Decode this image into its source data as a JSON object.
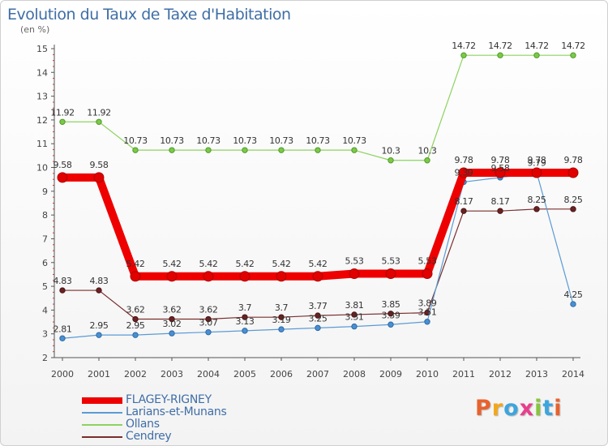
{
  "header": {
    "title": "Evolution du Taux de Taxe d'Habitation",
    "subtitle": "(en %)"
  },
  "brand": {
    "letters": [
      "P",
      "r",
      "o",
      "x",
      "i",
      "t",
      "i"
    ],
    "colors": [
      "#e8622c",
      "#f2a71b",
      "#3da5dd",
      "#e83e8c",
      "#88c540",
      "#3da5dd",
      "#e8622c"
    ]
  },
  "chart_data": {
    "type": "line",
    "title": "Evolution du Taux de Taxe d'Habitation",
    "ylabel": "(en %)",
    "xlabel": "",
    "x": [
      "2000",
      "2001",
      "2002",
      "2003",
      "2004",
      "2005",
      "2006",
      "2007",
      "2008",
      "2009",
      "2010",
      "2011",
      "2012",
      "2013",
      "2014"
    ],
    "ylim": [
      2,
      15
    ],
    "yticks": [
      "2",
      "3",
      "4",
      "5",
      "6",
      "7",
      "8",
      "9",
      "10",
      "11",
      "12",
      "13",
      "14",
      "15"
    ],
    "grid": false,
    "legend_position": "bottom-left",
    "series": [
      {
        "name": "FLAGEY-RIGNEY",
        "color": "#ee0000",
        "values": [
          9.58,
          9.58,
          5.42,
          5.42,
          5.42,
          5.42,
          5.42,
          5.42,
          5.53,
          5.53,
          5.53,
          9.78,
          9.78,
          9.78,
          9.78
        ],
        "labels": [
          "9.58",
          "9.58",
          "5.42",
          "5.42",
          "5.42",
          "5.42",
          "5.42",
          "5.42",
          "5.53",
          "5.53",
          "5.53",
          "9.78",
          "9.78",
          "9.78",
          "9.78"
        ]
      },
      {
        "name": "Larians-et-Munans",
        "color": "#5b9bd5",
        "values": [
          2.81,
          2.95,
          2.95,
          3.02,
          3.07,
          3.13,
          3.19,
          3.25,
          3.31,
          3.39,
          3.51,
          9.39,
          9.58,
          9.79,
          4.25
        ],
        "labels": [
          "2.81",
          "2.95",
          "2.95",
          "3.02",
          "3.07",
          "3.13",
          "3.19",
          "3.25",
          "3.31",
          "3.39",
          "3.51",
          "9.39",
          "9.58",
          "9.79",
          "4.25"
        ]
      },
      {
        "name": "Ollans",
        "color": "#8dd35f",
        "values": [
          11.92,
          11.92,
          10.73,
          10.73,
          10.73,
          10.73,
          10.73,
          10.73,
          10.73,
          10.3,
          10.3,
          14.72,
          14.72,
          14.72,
          14.72
        ],
        "labels": [
          "11.92",
          "11.92",
          "10.73",
          "10.73",
          "10.73",
          "10.73",
          "10.73",
          "10.73",
          "10.73",
          "10.3",
          "10.3",
          "14.72",
          "14.72",
          "14.72",
          "14.72"
        ]
      },
      {
        "name": "Cendrey",
        "color": "#7a2e2e",
        "values": [
          4.83,
          4.83,
          3.62,
          3.62,
          3.62,
          3.7,
          3.7,
          3.77,
          3.81,
          3.85,
          3.89,
          8.17,
          8.17,
          8.25,
          8.25
        ],
        "labels": [
          "4.83",
          "4.83",
          "3.62",
          "3.62",
          "3.62",
          "3.7",
          "3.7",
          "3.77",
          "3.81",
          "3.85",
          "3.89",
          "8.17",
          "8.17",
          "8.25",
          "8.25"
        ]
      }
    ]
  }
}
